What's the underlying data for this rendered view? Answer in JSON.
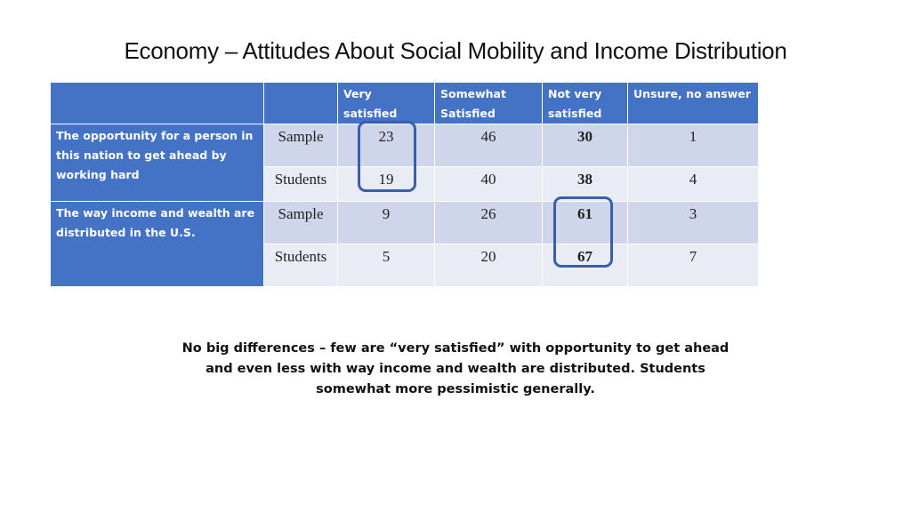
{
  "title": "Economy – Attitudes About Social Mobility and Income Distribution",
  "table": {
    "columns": [
      "Very satisfied",
      "Somewhat Satisfied",
      "Not very satisfied",
      "Unsure, no answer"
    ],
    "rows": [
      {
        "question": "The opportunity for a person in this nation to get ahead by working hard",
        "groups": [
          {
            "group": "Sample",
            "values": [
              "23",
              "46",
              "30",
              "1"
            ]
          },
          {
            "group": "Students",
            "values": [
              "19",
              "40",
              "38",
              "4"
            ]
          }
        ]
      },
      {
        "question": "The way income and wealth are distributed in the U.S.",
        "groups": [
          {
            "group": "Sample",
            "values": [
              "9",
              "26",
              "61",
              "3"
            ]
          },
          {
            "group": "Students",
            "values": [
              "5",
              "20",
              "67",
              "7"
            ]
          }
        ]
      }
    ]
  },
  "note": "No big differences – few are “very satisfied” with opportunity to get ahead and even less with way income and wealth are distributed. Students somewhat more pessimistic generally.",
  "colors": {
    "header_blue": "#4472c4",
    "row_shade_dark": "#cfd5ea",
    "row_shade_light": "#e9ebf5",
    "highlight_outline": "#3b5ea8"
  }
}
